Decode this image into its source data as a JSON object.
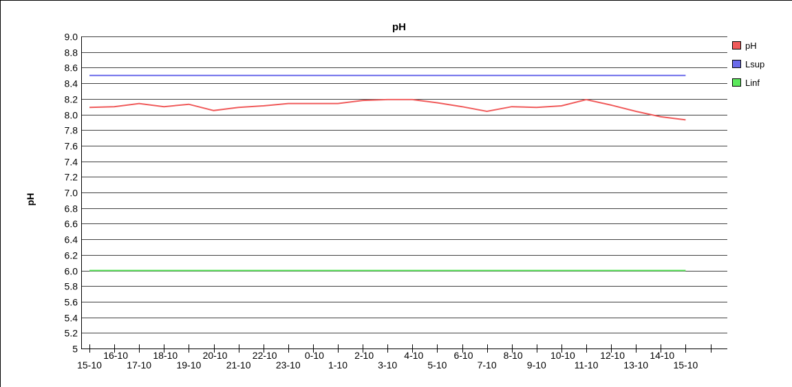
{
  "chart_data": {
    "type": "line",
    "title": "pH",
    "xlabel": "",
    "ylabel": "pH",
    "ylim": [
      5,
      9
    ],
    "yticks": [
      "9.0",
      "8.8",
      "8.6",
      "8.4",
      "8.2",
      "8.0",
      "7.8",
      "7.6",
      "7.4",
      "7.2",
      "7.0",
      "6.8",
      "6.6",
      "6.4",
      "6.2",
      "6.0",
      "5.8",
      "5.6",
      "5.4",
      "5.2",
      "5"
    ],
    "grid": true,
    "legend_position": "right",
    "x_upper_labels": [
      "16-10",
      "18-10",
      "20-10",
      "22-10",
      "0-10",
      "2-10",
      "4-10",
      "6-10",
      "8-10",
      "10-10",
      "12-10",
      "14-10"
    ],
    "x_lower_labels": [
      "15-10",
      "17-10",
      "19-10",
      "21-10",
      "23-10",
      "1-10",
      "3-10",
      "5-10",
      "7-10",
      "9-10",
      "11-10",
      "13-10",
      "15-10"
    ],
    "series": [
      {
        "name": "pH",
        "color": "#f05a5a",
        "values": [
          8.09,
          8.1,
          8.14,
          8.1,
          8.13,
          8.05,
          8.09,
          8.11,
          8.14,
          8.14,
          8.14,
          8.18,
          8.19,
          8.19,
          8.15,
          8.1,
          8.04,
          8.1,
          8.09,
          8.11,
          8.19,
          8.12,
          8.04,
          7.97,
          7.93
        ]
      },
      {
        "name": "Lsup",
        "color": "#6a6aea",
        "values": [
          8.5,
          8.5,
          8.5,
          8.5,
          8.5,
          8.5,
          8.5,
          8.5,
          8.5,
          8.5,
          8.5,
          8.5,
          8.5,
          8.5,
          8.5,
          8.5,
          8.5,
          8.5,
          8.5,
          8.5,
          8.5,
          8.5,
          8.5,
          8.5,
          8.5
        ]
      },
      {
        "name": "Linf",
        "color": "#5ce85c",
        "values": [
          6.0,
          6.0,
          6.0,
          6.0,
          6.0,
          6.0,
          6.0,
          6.0,
          6.0,
          6.0,
          6.0,
          6.0,
          6.0,
          6.0,
          6.0,
          6.0,
          6.0,
          6.0,
          6.0,
          6.0,
          6.0,
          6.0,
          6.0,
          6.0,
          6.0
        ]
      }
    ]
  }
}
